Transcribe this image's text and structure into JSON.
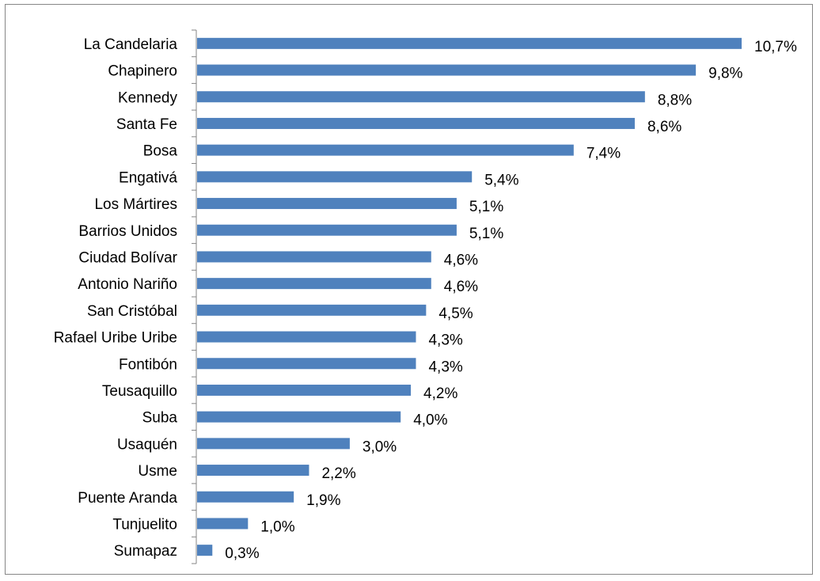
{
  "chart_data": {
    "type": "bar",
    "orientation": "horizontal",
    "title": "",
    "xlabel": "",
    "ylabel": "",
    "categories": [
      "La Candelaria",
      "Chapinero",
      "Kennedy",
      "Santa Fe",
      "Bosa",
      "Engativá",
      "Los Mártires",
      "Barrios Unidos",
      "Ciudad Bolívar",
      "Antonio Nariño",
      "San Cristóbal",
      "Rafael Uribe Uribe",
      "Fontibón",
      "Teusaquillo",
      "Suba",
      "Usaquén",
      "Usme",
      "Puente Aranda",
      "Tunjuelito",
      "Sumapaz"
    ],
    "values": [
      10.7,
      9.8,
      8.8,
      8.6,
      7.4,
      5.4,
      5.1,
      5.1,
      4.6,
      4.6,
      4.5,
      4.3,
      4.3,
      4.2,
      4.0,
      3.0,
      2.2,
      1.9,
      1.0,
      0.3
    ],
    "value_labels": [
      "10,7%",
      "9,8%",
      "8,8%",
      "8,6%",
      "7,4%",
      "5,4%",
      "5,1%",
      "5,1%",
      "4,6%",
      "4,6%",
      "4,5%",
      "4,3%",
      "4,3%",
      "4,2%",
      "4,0%",
      "3,0%",
      "2,2%",
      "1,9%",
      "1,0%",
      "0,3%"
    ],
    "xlim": [
      0,
      10.7
    ],
    "grid": false,
    "legend": "none",
    "bar_color": "#4f81bd"
  }
}
